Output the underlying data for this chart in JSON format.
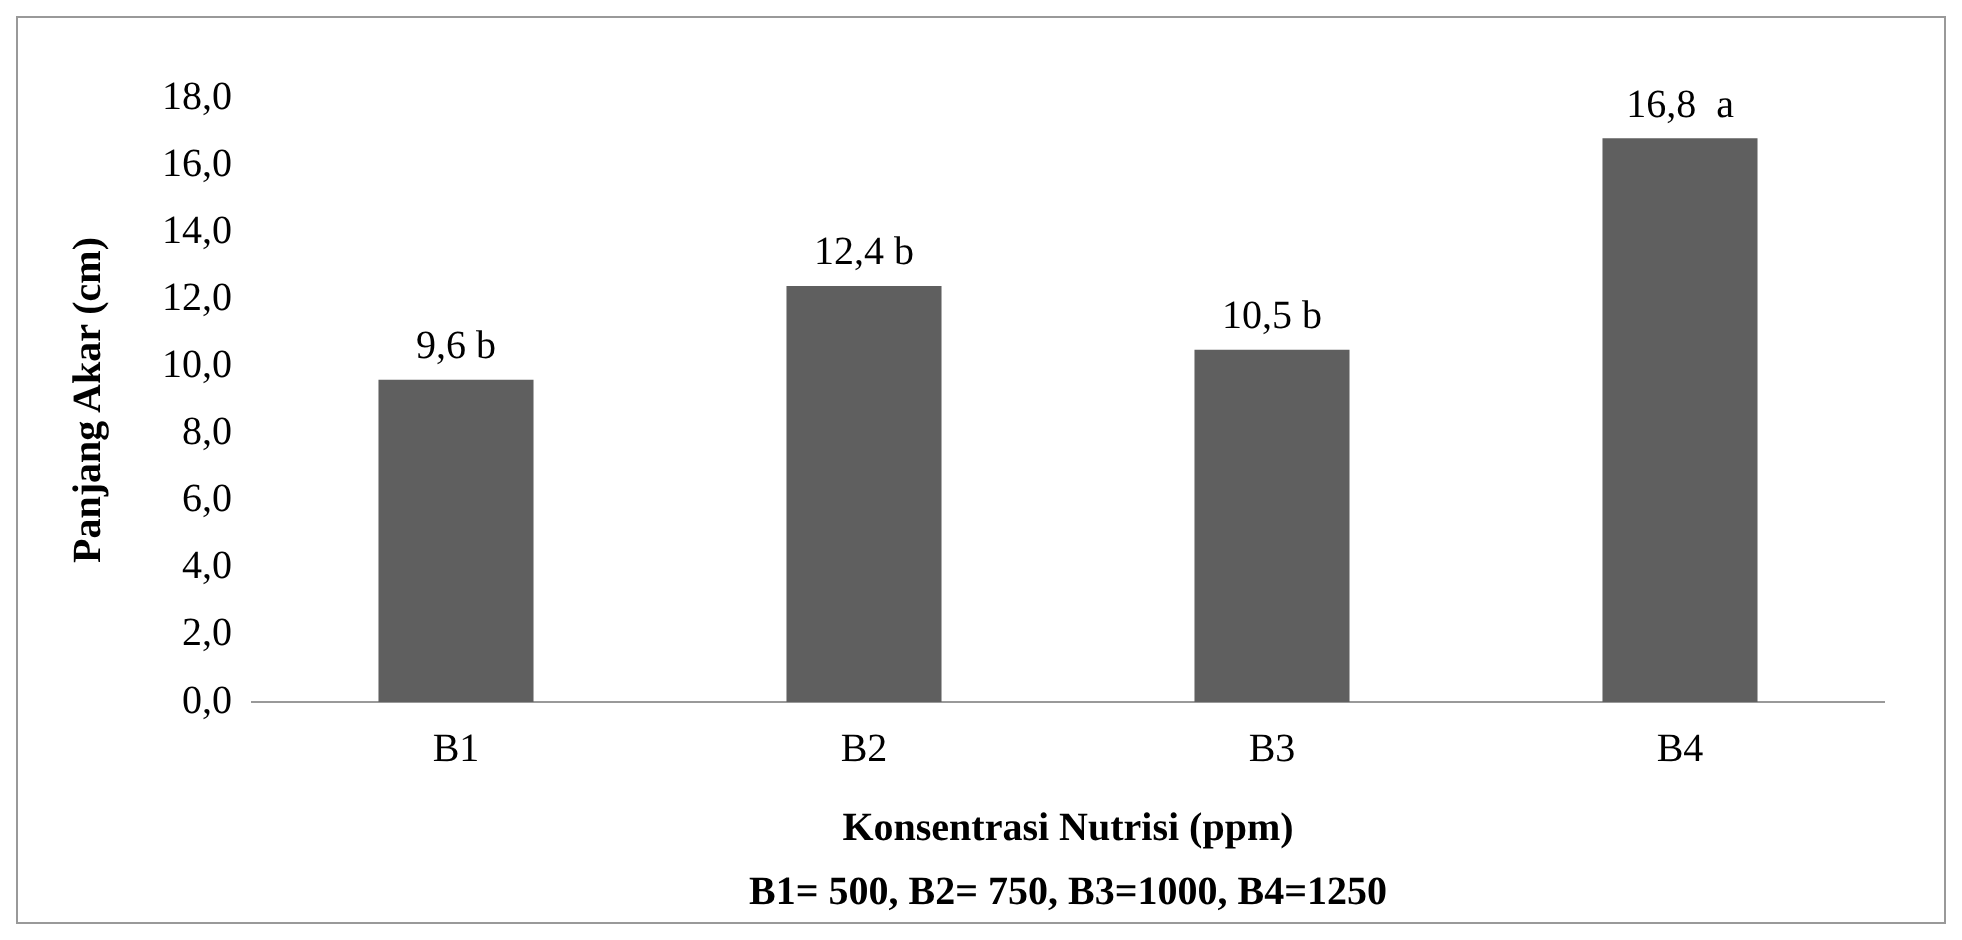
{
  "chart_data": {
    "type": "bar",
    "ylabel": "Panjang Akar (cm)",
    "xlabel": "Konsentrasi Nutrisi (ppm)",
    "annotations": [
      "B1= 500, B2= 750, B3=1000, B4=1250"
    ],
    "categories": [
      "B1",
      "B2",
      "B3",
      "B4"
    ],
    "values": [
      9.6,
      12.4,
      10.5,
      16.8
    ],
    "value_labels": [
      "9,6 b",
      "12,4 b",
      "10,5 b",
      "16,8  a"
    ],
    "color": "#5f5f5f",
    "ylim": [
      0,
      18
    ],
    "yticks": [
      {
        "value": 0,
        "label": "0,0"
      },
      {
        "value": 2,
        "label": "2,0"
      },
      {
        "value": 4,
        "label": "4,0"
      },
      {
        "value": 6,
        "label": "6,0"
      },
      {
        "value": 8,
        "label": "8,0"
      },
      {
        "value": 10,
        "label": "10,0"
      },
      {
        "value": 12,
        "label": "12,0"
      },
      {
        "value": 14,
        "label": "14,0"
      },
      {
        "value": 16,
        "label": "16,0"
      },
      {
        "value": 18,
        "label": "18,0"
      }
    ],
    "grid": false,
    "legend": false
  }
}
